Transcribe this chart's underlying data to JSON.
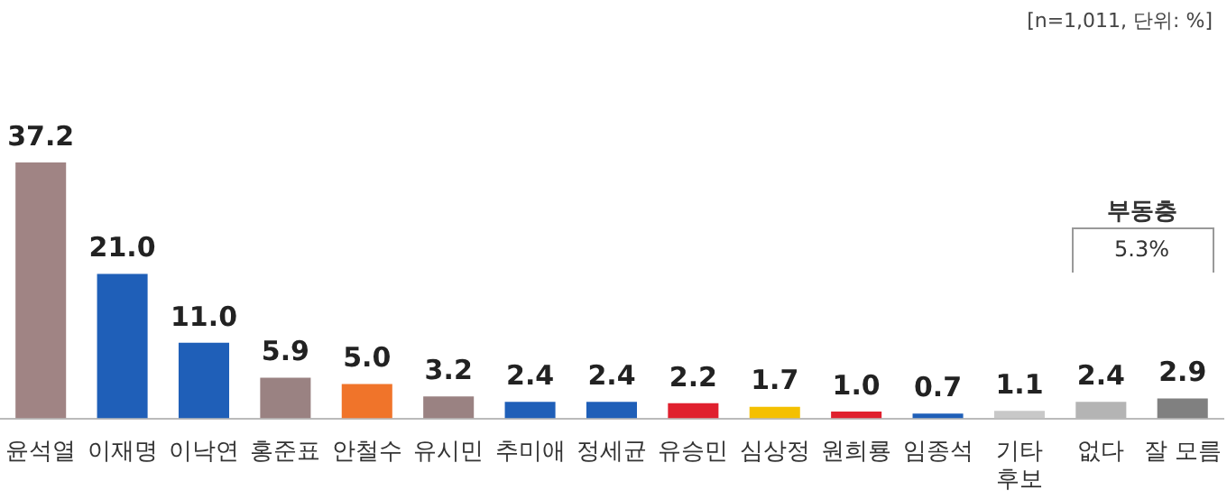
{
  "chart_data": {
    "type": "bar",
    "categories": [
      "윤석열",
      "이재명",
      "이낙연",
      "홍준표",
      "안철수",
      "유시민",
      "추미애",
      "정세균",
      "유승민",
      "심상정",
      "원희룡",
      "임종석",
      "기타\n후보",
      "없다",
      "잘 모름"
    ],
    "values": [
      37.2,
      21.0,
      11.0,
      5.9,
      5.0,
      3.2,
      2.4,
      2.4,
      2.2,
      1.7,
      1.0,
      0.7,
      1.1,
      2.4,
      2.9
    ],
    "value_labels": [
      "37.2",
      "21.0",
      "11.0",
      "5.9",
      "5.0",
      "3.2",
      "2.4",
      "2.4",
      "2.2",
      "1.7",
      "1.0",
      "0.7",
      "1.1",
      "2.4",
      "2.9"
    ],
    "colors": [
      "#a08484",
      "#1f5fb8",
      "#1f5fb8",
      "#9a8282",
      "#f0742a",
      "#9a8282",
      "#1f5fb8",
      "#1f5fb8",
      "#e0202e",
      "#f4c000",
      "#e0202e",
      "#1f5fb8",
      "#c8c8c8",
      "#b4b4b4",
      "#808080"
    ],
    "annotations": [
      "[n=1,011, 단위: %]",
      "부동층",
      "5.3%"
    ],
    "grid": false,
    "legend": false,
    "tick_labels": "x"
  }
}
